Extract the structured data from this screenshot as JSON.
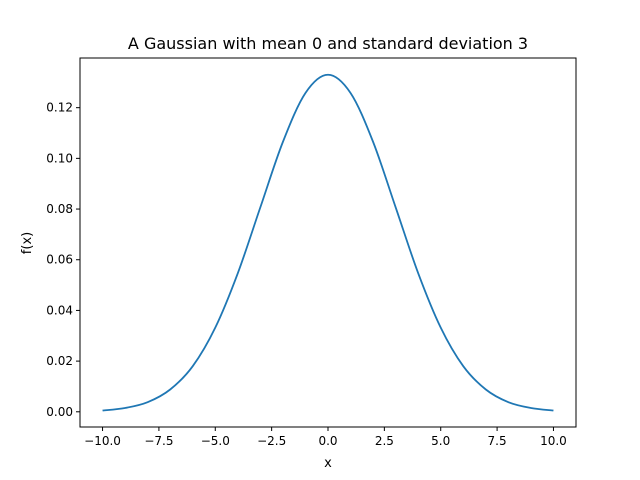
{
  "chart_data": {
    "type": "line",
    "title": "A Gaussian with mean 0 and standard deviation 3",
    "xlabel": "x",
    "ylabel": "f(x)",
    "xlim": [
      -11.0,
      11.0
    ],
    "ylim": [
      -0.006,
      0.1396
    ],
    "grid": false,
    "legend": "none",
    "x_ticks": [
      -10.0,
      -7.5,
      -5.0,
      -2.5,
      0.0,
      2.5,
      5.0,
      7.5,
      10.0
    ],
    "x_tick_labels": [
      "−10.0",
      "−7.5",
      "−5.0",
      "−2.5",
      "0.0",
      "2.5",
      "5.0",
      "7.5",
      "10.0"
    ],
    "y_ticks": [
      0.0,
      0.02,
      0.04,
      0.06,
      0.08,
      0.1,
      0.12
    ],
    "y_tick_labels": [
      "0.00",
      "0.02",
      "0.04",
      "0.06",
      "0.08",
      "0.10",
      "0.12"
    ],
    "series": [
      {
        "color": "#1f77b4",
        "x": [
          -10.0,
          -9.0,
          -8.0,
          -7.0,
          -6.0,
          -5.0,
          -4.0,
          -3.0,
          -2.0,
          -1.0,
          0.0,
          1.0,
          2.0,
          3.0,
          4.0,
          5.0,
          6.0,
          7.0,
          8.0,
          9.0,
          10.0
        ],
        "y": [
          0.0005,
          0.0015,
          0.0038,
          0.0088,
          0.018,
          0.0332,
          0.0547,
          0.0807,
          0.1065,
          0.1258,
          0.133,
          0.1258,
          0.1065,
          0.0807,
          0.0547,
          0.0332,
          0.018,
          0.0088,
          0.0038,
          0.0015,
          0.0005
        ]
      }
    ]
  }
}
